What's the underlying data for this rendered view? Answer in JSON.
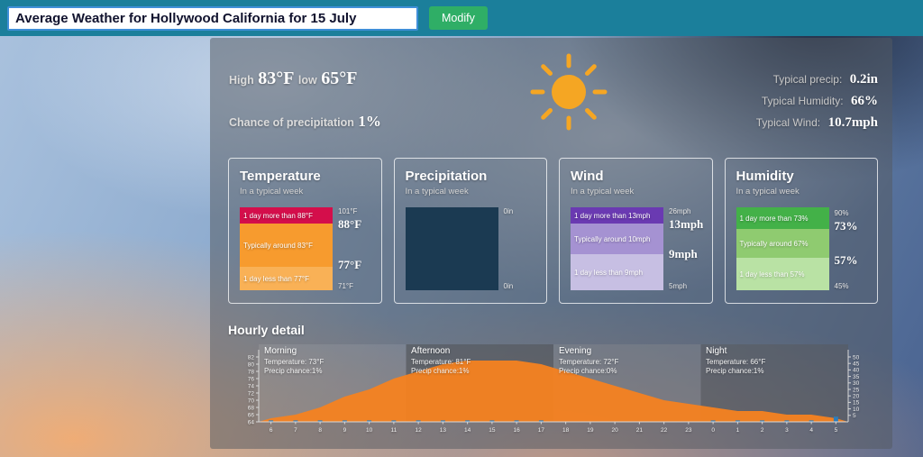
{
  "header": {
    "query_value": "Average Weather for Hollywood California for 15 July",
    "modify_label": "Modify",
    "bar_color": "#1b7f9b",
    "button_color": "#2fae66"
  },
  "summary": {
    "high_label": "High",
    "high_value": "83°F",
    "low_label": "low",
    "low_value": "65°F",
    "precip_label": "Chance of precipitation",
    "precip_value": "1%",
    "sun_color": "#f5a623",
    "stats": [
      {
        "label": "Typical precip:",
        "value": "0.2in"
      },
      {
        "label": "Typical Humidity:",
        "value": "66%"
      },
      {
        "label": "Typical Wind:",
        "value": "10.7mph"
      }
    ]
  },
  "cards": [
    {
      "title": "Temperature",
      "subtitle": "In a typical week",
      "segments": [
        {
          "label": "1 day more than 88°F",
          "color": "#d40e4b"
        },
        {
          "label": "Typically around 83°F",
          "color": "#f79b2e"
        },
        {
          "label": "1 day less than 77°F",
          "color": "#f9b156"
        }
      ],
      "axis": [
        "101°F",
        "88°F",
        "77°F",
        "71°F"
      ]
    },
    {
      "title": "Precipitation",
      "subtitle": "In a typical week",
      "box_color": "#1b3a52",
      "axis": [
        "0in",
        "0in"
      ]
    },
    {
      "title": "Wind",
      "subtitle": "In a typical week",
      "segments": [
        {
          "label": "1 day more than 13mph",
          "color": "#6a3ab2"
        },
        {
          "label": "Typically around 10mph",
          "color": "#a592d2"
        },
        {
          "label": "1 day less than 9mph",
          "color": "#c7bfe3"
        }
      ],
      "axis": [
        "26mph",
        "13mph",
        "9mph",
        "5mph"
      ]
    },
    {
      "title": "Humidity",
      "subtitle": "In a typical week",
      "segments": [
        {
          "label": "1 day more than 73%",
          "color": "#43b148"
        },
        {
          "label": "Typically around 67%",
          "color": "#8fcb70"
        },
        {
          "label": "1 day less than 57%",
          "color": "#b9e2a4"
        }
      ],
      "axis": [
        "90%",
        "73%",
        "57%",
        "45%"
      ]
    }
  ],
  "hourly": {
    "title": "Hourly detail",
    "segments": [
      {
        "name": "Morning",
        "temp": "Temperature: 73°F",
        "precip": "Precip chance:1%"
      },
      {
        "name": "Afternoon",
        "temp": "Temperature: 81°F",
        "precip": "Precip chance:1%"
      },
      {
        "name": "Evening",
        "temp": "Temperature: 72°F",
        "precip": "Precip chance:0%"
      },
      {
        "name": "Night",
        "temp": "Temperature: 66°F",
        "precip": "Precip chance:1%"
      }
    ]
  },
  "chart_data": {
    "type": "area",
    "x": [
      6,
      7,
      8,
      9,
      10,
      11,
      12,
      13,
      14,
      15,
      16,
      17,
      18,
      19,
      20,
      21,
      22,
      23,
      0,
      1,
      2,
      3,
      4,
      5
    ],
    "series": [
      {
        "name": "Temperature (°F)",
        "values": [
          65,
          66,
          68,
          71,
          73,
          76,
          78,
          80,
          81,
          81,
          81,
          80,
          78,
          76,
          74,
          72,
          70,
          69,
          68,
          67,
          67,
          66,
          66,
          65
        ]
      },
      {
        "name": "Precip chance (%)",
        "values": [
          1,
          1,
          1,
          1,
          1,
          1,
          1,
          1,
          1,
          1,
          1,
          1,
          0,
          0,
          0,
          0,
          0,
          0,
          1,
          1,
          1,
          1,
          1,
          4
        ]
      }
    ],
    "left_axis": {
      "ticks": [
        82,
        80,
        78,
        76,
        74,
        72,
        70,
        68,
        66,
        64
      ],
      "range": [
        64,
        82
      ]
    },
    "right_axis": {
      "ticks": [
        50,
        45,
        40,
        35,
        30,
        25,
        20,
        15,
        10,
        5
      ],
      "range": [
        0,
        50
      ]
    },
    "area_color": "#f58220",
    "bar_color": "#2d7dbb",
    "band_colors": [
      "rgba(235,235,235,0.10)",
      "rgba(75,75,75,0.45)",
      "rgba(150,150,150,0.28)",
      "rgba(85,85,85,0.42)"
    ],
    "legend": "none",
    "grid": "off"
  }
}
